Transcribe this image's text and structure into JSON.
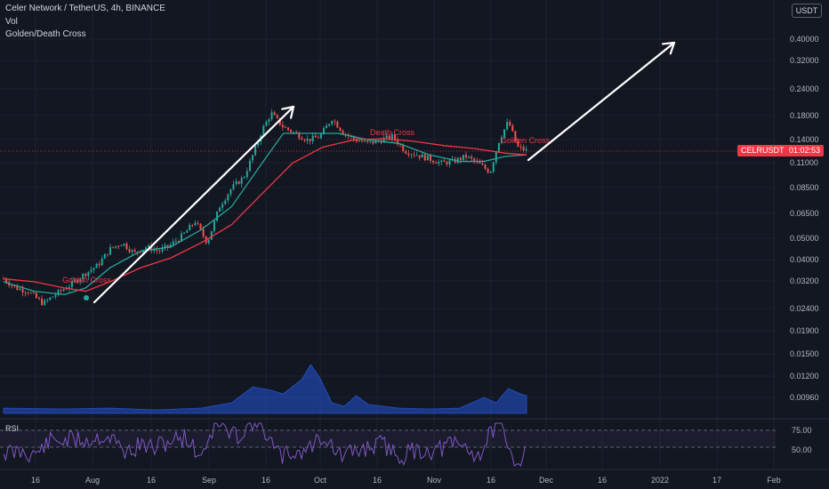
{
  "header": {
    "symbol_line": "Celer Network / TetherUS, 4h, BINANCE",
    "vol_label": "Vol",
    "indicator_label": "Golden/Death Cross"
  },
  "currency_badge": "USDT",
  "price_tag": {
    "symbol": "CELRUSDT",
    "countdown": "01:02:53",
    "value": 0.125
  },
  "rsi_label": "RSI",
  "chart_data": {
    "type": "candlestick",
    "title": "Celer Network / TetherUS, 4h, BINANCE",
    "y_scale": "log",
    "y_ticks": [
      0.4,
      0.32,
      0.24,
      0.18,
      0.14,
      0.11,
      0.085,
      0.065,
      0.05,
      0.04,
      0.032,
      0.024,
      0.019,
      0.015,
      0.012,
      0.0096
    ],
    "y_tick_labels": [
      "0.40000",
      "0.32000",
      "0.24000",
      "0.18000",
      "0.14000",
      "0.11000",
      "0.08500",
      "0.06500",
      "0.05000",
      "0.04000",
      "0.03200",
      "0.02400",
      "0.01900",
      "0.01500",
      "0.01200",
      "0.00960"
    ],
    "x_tick_labels": [
      "16",
      "Aug",
      "16",
      "Sep",
      "16",
      "Oct",
      "16",
      "Nov",
      "16",
      "Dec",
      "16",
      "2022",
      "17",
      "Feb"
    ],
    "price_path": [
      [
        0,
        0.033
      ],
      [
        4,
        0.03
      ],
      [
        8,
        0.029
      ],
      [
        13,
        0.0255
      ],
      [
        17,
        0.028
      ],
      [
        22,
        0.031
      ],
      [
        27,
        0.035
      ],
      [
        31,
        0.038
      ],
      [
        35,
        0.045
      ],
      [
        39,
        0.048
      ],
      [
        43,
        0.043
      ],
      [
        47,
        0.046
      ],
      [
        51,
        0.044
      ],
      [
        55,
        0.047
      ],
      [
        59,
        0.052
      ],
      [
        63,
        0.06
      ],
      [
        67,
        0.048
      ],
      [
        71,
        0.07
      ],
      [
        75,
        0.085
      ],
      [
        79,
        0.095
      ],
      [
        82,
        0.12
      ],
      [
        85,
        0.155
      ],
      [
        88,
        0.185
      ],
      [
        92,
        0.16
      ],
      [
        96,
        0.15
      ],
      [
        100,
        0.14
      ],
      [
        104,
        0.145
      ],
      [
        108,
        0.175
      ],
      [
        112,
        0.15
      ],
      [
        116,
        0.14
      ],
      [
        120,
        0.135
      ],
      [
        124,
        0.14
      ],
      [
        128,
        0.145
      ],
      [
        132,
        0.125
      ],
      [
        136,
        0.12
      ],
      [
        140,
        0.115
      ],
      [
        144,
        0.11
      ],
      [
        148,
        0.112
      ],
      [
        152,
        0.118
      ],
      [
        156,
        0.11
      ],
      [
        160,
        0.1
      ],
      [
        163,
        0.14
      ],
      [
        166,
        0.17
      ],
      [
        169,
        0.13
      ],
      [
        172,
        0.125
      ]
    ],
    "series": [
      {
        "name": "MA (green)",
        "color": "#26a69a",
        "values": [
          [
            0,
            0.032
          ],
          [
            10,
            0.029
          ],
          [
            20,
            0.028
          ],
          [
            27,
            0.03
          ],
          [
            35,
            0.037
          ],
          [
            45,
            0.044
          ],
          [
            55,
            0.046
          ],
          [
            65,
            0.055
          ],
          [
            75,
            0.07
          ],
          [
            85,
            0.11
          ],
          [
            92,
            0.15
          ],
          [
            100,
            0.15
          ],
          [
            110,
            0.15
          ],
          [
            120,
            0.14
          ],
          [
            130,
            0.135
          ],
          [
            140,
            0.12
          ],
          [
            150,
            0.112
          ],
          [
            158,
            0.112
          ],
          [
            165,
            0.118
          ],
          [
            172,
            0.12
          ]
        ]
      },
      {
        "name": "MA (red)",
        "color": "#f23645",
        "values": [
          [
            0,
            0.033
          ],
          [
            10,
            0.032
          ],
          [
            20,
            0.03
          ],
          [
            27,
            0.029
          ],
          [
            35,
            0.032
          ],
          [
            45,
            0.037
          ],
          [
            55,
            0.041
          ],
          [
            65,
            0.048
          ],
          [
            75,
            0.058
          ],
          [
            85,
            0.08
          ],
          [
            95,
            0.11
          ],
          [
            105,
            0.13
          ],
          [
            115,
            0.14
          ],
          [
            125,
            0.142
          ],
          [
            135,
            0.138
          ],
          [
            145,
            0.132
          ],
          [
            155,
            0.128
          ],
          [
            165,
            0.122
          ],
          [
            172,
            0.12
          ]
        ]
      }
    ],
    "annotations": [
      "Golden Cross",
      "Death Cross",
      "Golden Cross"
    ],
    "rsi_levels": [
      "75.00",
      "50.00"
    ],
    "colors": {
      "up": "#26a69a",
      "down": "#ef5350",
      "volume": "#2962ff",
      "rsi": "#7e57c2",
      "arrow": "#ffffff"
    }
  }
}
